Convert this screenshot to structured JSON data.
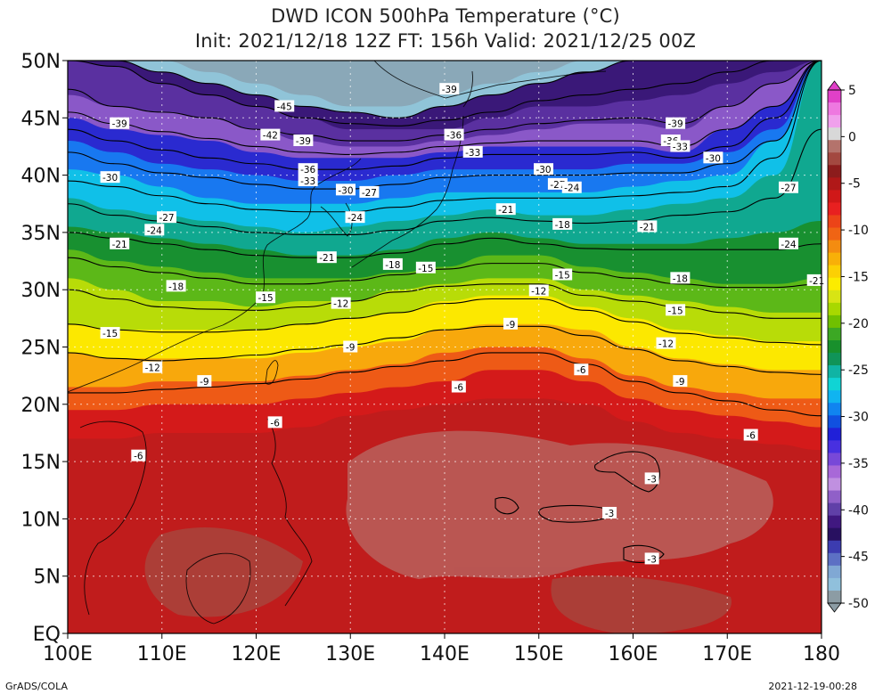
{
  "title": {
    "line1": "DWD ICON 500hPa Temperature (°C)",
    "line2": "Init: 2021/12/18 12Z  FT: 156h  Valid: 2021/12/25 00Z"
  },
  "credits": {
    "left": "GrADS/COLA",
    "right": "2021-12-19-00:28"
  },
  "axes": {
    "lat_labels": [
      "50N",
      "45N",
      "40N",
      "35N",
      "30N",
      "25N",
      "20N",
      "15N",
      "10N",
      "5N",
      "EQ"
    ],
    "lat_values": [
      50,
      45,
      40,
      35,
      30,
      25,
      20,
      15,
      10,
      5,
      0
    ],
    "lon_labels": [
      "100E",
      "110E",
      "120E",
      "130E",
      "140E",
      "150E",
      "160E",
      "170E",
      "180"
    ],
    "lon_values": [
      100,
      110,
      120,
      130,
      140,
      150,
      160,
      170,
      180
    ],
    "lon_range": [
      100,
      180
    ],
    "lat_range": [
      0,
      50
    ]
  },
  "colorbar": {
    "labels": [
      "5",
      "0",
      "-5",
      "-10",
      "-15",
      "-20",
      "-25",
      "-30",
      "-35",
      "-40",
      "-45",
      "-50"
    ],
    "levels": [
      5,
      0,
      -5,
      -10,
      -15,
      -20,
      -25,
      -30,
      -35,
      -40,
      -45,
      -50
    ],
    "colors": [
      "#e040c8",
      "#ee78e0",
      "#f0a0ec",
      "#d8d8d8",
      "#b4736c",
      "#a34840",
      "#8c1c1c",
      "#b01818",
      "#d01818",
      "#e82020",
      "#ec4418",
      "#f06414",
      "#f48c10",
      "#f8b008",
      "#fcd004",
      "#fcec00",
      "#d8e414",
      "#a8d800",
      "#70c000",
      "#3ca824",
      "#18902c",
      "#109458",
      "#10b4a4",
      "#10d4d4",
      "#10b4f0",
      "#1084f0",
      "#1050e0",
      "#2020d8",
      "#4830e0",
      "#7848d8",
      "#a868d8",
      "#c090e0",
      "#9060c8",
      "#6040a8",
      "#401880",
      "#281060",
      "#3c3cb0",
      "#5c70c4",
      "#80a8d4",
      "#90c0dc",
      "#8c9ca4"
    ]
  },
  "temperature_bands": [
    {
      "temp": -45,
      "color": "#8aa8b8",
      "lat": [
        50,
        50,
        50,
        49,
        48,
        47,
        46,
        46,
        47,
        48,
        49,
        50,
        50,
        50,
        50,
        50,
        50
      ]
    },
    {
      "temp": -42,
      "color": "#90c4d8",
      "lat": [
        50,
        50,
        49,
        48,
        47,
        46,
        45.5,
        45,
        46,
        47,
        48,
        49,
        50,
        50,
        50,
        50,
        50
      ]
    },
    {
      "temp": -39,
      "color": "#3a1878",
      "lat": [
        50,
        49.5,
        48,
        47,
        46,
        45,
        44,
        44,
        44,
        45,
        46,
        46,
        46.5,
        47,
        48,
        49,
        50
      ]
    },
    {
      "temp": -36,
      "color": "#5a30a0",
      "lat": [
        47,
        46,
        45.5,
        45,
        44,
        43,
        42.5,
        42.5,
        43,
        43.5,
        44,
        44.5,
        44.5,
        44,
        46,
        48,
        50
      ]
    },
    {
      "temp": -33,
      "color": "#8a58c8",
      "lat": [
        45,
        44,
        43.5,
        43,
        42,
        41.5,
        41.5,
        41.5,
        42,
        42.5,
        42.5,
        42.5,
        42.5,
        42,
        44,
        46,
        50
      ]
    },
    {
      "temp": -30,
      "color": "#2a2ad0",
      "lat": [
        43,
        42,
        41,
        40.5,
        40,
        39.5,
        39.5,
        40,
        40.5,
        40.5,
        40.5,
        40.5,
        41,
        41,
        42,
        44,
        50
      ]
    },
    {
      "temp": -27,
      "color": "#1878f0",
      "lat": [
        40.5,
        40,
        39,
        38,
        37.5,
        37.5,
        37.5,
        38,
        38.5,
        38.5,
        38.5,
        38.5,
        39,
        39.5,
        40,
        43,
        50
      ]
    },
    {
      "temp": -24,
      "color": "#10c0e8",
      "lat": [
        38,
        37,
        36.5,
        36,
        35.5,
        35,
        35.5,
        36,
        36.5,
        37,
        36.5,
        36.5,
        37,
        37.5,
        38,
        40,
        50
      ]
    },
    {
      "temp": -21,
      "color": "#10a890",
      "lat": [
        35.5,
        35,
        34.5,
        34,
        33.5,
        33,
        33,
        33.5,
        34.5,
        35,
        34.5,
        34,
        34,
        34,
        34.5,
        35,
        36
      ]
    },
    {
      "temp": -18,
      "color": "#189030",
      "lat": [
        33.5,
        32.5,
        32,
        31.5,
        31,
        31,
        31,
        31.5,
        32,
        33,
        33,
        32,
        31.5,
        31,
        30.5,
        30.5,
        31
      ]
    },
    {
      "temp": -15,
      "color": "#5cb818",
      "lat": [
        31,
        30,
        29,
        29,
        28.5,
        29,
        29,
        30,
        30.5,
        31,
        31,
        30,
        29.5,
        29,
        28.5,
        28,
        28
      ]
    },
    {
      "temp": -12,
      "color": "#b8dc08",
      "lat": [
        27,
        26.5,
        26.5,
        26.5,
        26.5,
        27,
        27.5,
        28,
        29,
        29.5,
        29.5,
        28.5,
        27.5,
        26.5,
        26,
        25.5,
        25.5
      ]
    },
    {
      "temp": -9,
      "color": "#fce800",
      "lat": [
        24.5,
        24,
        24,
        24,
        24,
        24.5,
        25,
        25.5,
        26.5,
        27,
        27,
        26.5,
        25,
        24,
        23.5,
        23,
        23
      ]
    },
    {
      "temp": -6,
      "color": "#f8a80c",
      "lat": [
        21.5,
        21.5,
        22,
        22,
        22,
        22.5,
        23,
        23.5,
        24.5,
        25,
        25,
        24,
        22.5,
        21.5,
        21,
        20.5,
        20.5
      ]
    },
    {
      "temp": -3,
      "color": "#ee5a16",
      "lat": [
        19.5,
        19.5,
        20,
        20,
        20,
        20.5,
        21,
        21.5,
        22,
        23,
        23,
        22,
        20.5,
        19.5,
        19,
        18.5,
        18
      ]
    },
    {
      "temp": 0,
      "color": "#d41a1a",
      "lat": [
        17,
        17,
        17.5,
        17.5,
        17.5,
        18,
        19,
        19.5,
        20,
        20.5,
        20.5,
        20,
        18.5,
        17.5,
        17,
        16.5,
        16
      ]
    }
  ],
  "contours": [
    {
      "label": "-45",
      "lat": [
        50,
        50,
        49,
        48,
        47,
        46,
        45.5,
        45,
        46,
        47,
        48,
        49,
        50,
        50,
        50,
        50,
        50
      ]
    },
    {
      "label": "-42",
      "lat": [
        50,
        49.5,
        48,
        47,
        46,
        45,
        44.5,
        44.3,
        44.8,
        45.5,
        46.5,
        47,
        47.5,
        48,
        49,
        50,
        50
      ]
    },
    {
      "label": "-39",
      "lat": [
        47.5,
        46,
        45.5,
        45,
        44,
        43.5,
        43,
        43,
        43.5,
        44,
        44.5,
        44.8,
        45,
        44.5,
        46,
        48,
        50
      ]
    },
    {
      "label": "-36",
      "lat": [
        45.5,
        44.5,
        43.8,
        43.2,
        42.5,
        42,
        41.8,
        42,
        42.5,
        42.8,
        43,
        43,
        43,
        42.5,
        44,
        46,
        50
      ]
    },
    {
      "label": "-33",
      "lat": [
        44,
        43,
        42.2,
        41.5,
        41,
        40.5,
        40.5,
        40.8,
        41.5,
        41.8,
        41.8,
        41.8,
        42,
        41.5,
        42.5,
        45,
        50
      ]
    },
    {
      "label": "-30",
      "lat": [
        42,
        41,
        40.2,
        39.8,
        39.2,
        38.8,
        38.8,
        39.2,
        39.8,
        40,
        40,
        40,
        40.2,
        40.2,
        41,
        43,
        50
      ]
    },
    {
      "label": "-27",
      "lat": [
        39.5,
        39,
        38.2,
        37.5,
        37,
        36.8,
        36.8,
        37.2,
        37.8,
        38,
        38,
        38,
        38.2,
        38.5,
        39,
        41.5,
        50
      ]
    },
    {
      "label": "-24",
      "lat": [
        37.5,
        36.5,
        36,
        35.5,
        35,
        34.8,
        34.8,
        35.2,
        36,
        36.3,
        36,
        35.8,
        36,
        36.5,
        36.8,
        38,
        44
      ]
    },
    {
      "label": "-21",
      "lat": [
        35,
        34.5,
        34,
        33.5,
        33,
        32.8,
        32.8,
        33.2,
        34,
        34.5,
        34,
        33.6,
        33.5,
        33.5,
        33.5,
        33.5,
        34
      ]
    },
    {
      "label": "-18",
      "lat": [
        32.8,
        32,
        31.5,
        31,
        30.5,
        30.5,
        30.8,
        31.3,
        31.8,
        32.3,
        32.3,
        31.5,
        31,
        30.5,
        30.2,
        30.2,
        30.5
      ]
    },
    {
      "label": "-15",
      "lat": [
        30,
        29.2,
        28.5,
        28.3,
        28.2,
        28.5,
        29,
        29.8,
        30.3,
        30.5,
        30.5,
        29.5,
        29,
        28.5,
        28,
        27.5,
        27.5
      ]
    },
    {
      "label": "-12",
      "lat": [
        27,
        26.5,
        26.3,
        26.3,
        26.5,
        27,
        27.5,
        28,
        28.8,
        29.2,
        29.2,
        28.2,
        27.2,
        26.2,
        25.8,
        25.4,
        25.2
      ]
    },
    {
      "label": "-9",
      "lat": [
        24.5,
        24,
        23.8,
        24,
        24.3,
        24.8,
        25.2,
        25.8,
        26.5,
        26.8,
        26.8,
        26,
        24.8,
        23.8,
        23.3,
        22.8,
        22.6
      ]
    },
    {
      "label": "-6",
      "lat": [
        21,
        21,
        21.3,
        21.5,
        21.8,
        22.2,
        22.8,
        23.3,
        23.8,
        24.5,
        24.5,
        23.5,
        22,
        21,
        20.3,
        19.5,
        19
      ]
    }
  ],
  "contour_labels": [
    {
      "text": "-45",
      "lon": 123,
      "lat": 46
    },
    {
      "text": "-42",
      "lon": 121.5,
      "lat": 43.5
    },
    {
      "text": "-39",
      "lon": 105.5,
      "lat": 44.5
    },
    {
      "text": "-39",
      "lon": 125,
      "lat": 43
    },
    {
      "text": "-39",
      "lon": 140.5,
      "lat": 47.5
    },
    {
      "text": "-39",
      "lon": 164.5,
      "lat": 44.5
    },
    {
      "text": "-36",
      "lon": 125.5,
      "lat": 40.5
    },
    {
      "text": "-36",
      "lon": 141,
      "lat": 43.5
    },
    {
      "text": "-36",
      "lon": 164,
      "lat": 43
    },
    {
      "text": "-33",
      "lon": 125.5,
      "lat": 39.5
    },
    {
      "text": "-33",
      "lon": 143,
      "lat": 42
    },
    {
      "text": "-33",
      "lon": 165,
      "lat": 42.5
    },
    {
      "text": "-30",
      "lon": 104.5,
      "lat": 39.8
    },
    {
      "text": "-30",
      "lon": 129.5,
      "lat": 38.7
    },
    {
      "text": "-30",
      "lon": 150.5,
      "lat": 40.5
    },
    {
      "text": "-30",
      "lon": 168.5,
      "lat": 41.5
    },
    {
      "text": "-27",
      "lon": 110.5,
      "lat": 36.3
    },
    {
      "text": "-27",
      "lon": 132,
      "lat": 38.5
    },
    {
      "text": "-27",
      "lon": 152,
      "lat": 39.2
    },
    {
      "text": "-27",
      "lon": 176.5,
      "lat": 38.9
    },
    {
      "text": "-24",
      "lon": 109.2,
      "lat": 35.2
    },
    {
      "text": "-24",
      "lon": 130.5,
      "lat": 36.3
    },
    {
      "text": "-24",
      "lon": 153.5,
      "lat": 38.9
    },
    {
      "text": "-24",
      "lon": 176.5,
      "lat": 34
    },
    {
      "text": "-21",
      "lon": 105.5,
      "lat": 34
    },
    {
      "text": "-21",
      "lon": 127.5,
      "lat": 32.8
    },
    {
      "text": "-21",
      "lon": 146.5,
      "lat": 37
    },
    {
      "text": "-21",
      "lon": 161.5,
      "lat": 35.5
    },
    {
      "text": "-21",
      "lon": 179.5,
      "lat": 30.8
    },
    {
      "text": "-18",
      "lon": 111.5,
      "lat": 30.3
    },
    {
      "text": "-18",
      "lon": 134.5,
      "lat": 32.2
    },
    {
      "text": "-18",
      "lon": 152.5,
      "lat": 35.7
    },
    {
      "text": "-18",
      "lon": 165,
      "lat": 31
    },
    {
      "text": "-15",
      "lon": 121,
      "lat": 29.3
    },
    {
      "text": "-15",
      "lon": 138,
      "lat": 31.9
    },
    {
      "text": "-15",
      "lon": 152.5,
      "lat": 31.3
    },
    {
      "text": "-15",
      "lon": 104.5,
      "lat": 26.2
    },
    {
      "text": "-15",
      "lon": 164.5,
      "lat": 28.2
    },
    {
      "text": "-12",
      "lon": 129,
      "lat": 28.8
    },
    {
      "text": "-12",
      "lon": 150,
      "lat": 29.9
    },
    {
      "text": "-12",
      "lon": 109,
      "lat": 23.2
    },
    {
      "text": "-12",
      "lon": 163.5,
      "lat": 25.3
    },
    {
      "text": "-9",
      "lon": 130,
      "lat": 25
    },
    {
      "text": "-9",
      "lon": 147,
      "lat": 27
    },
    {
      "text": "-9",
      "lon": 114.5,
      "lat": 22
    },
    {
      "text": "-9",
      "lon": 165,
      "lat": 22
    },
    {
      "text": "-6",
      "lon": 141.5,
      "lat": 21.5
    },
    {
      "text": "-6",
      "lon": 154.5,
      "lat": 23
    },
    {
      "text": "-6",
      "lon": 122,
      "lat": 18.4
    },
    {
      "text": "-6",
      "lon": 107.5,
      "lat": 15.5
    },
    {
      "text": "-6",
      "lon": 172.5,
      "lat": 17.3
    },
    {
      "text": "-3",
      "lon": 162,
      "lat": 13.5
    },
    {
      "text": "-3",
      "lon": 157.5,
      "lat": 10.5
    },
    {
      "text": "-3",
      "lon": 162,
      "lat": 6.5
    }
  ]
}
